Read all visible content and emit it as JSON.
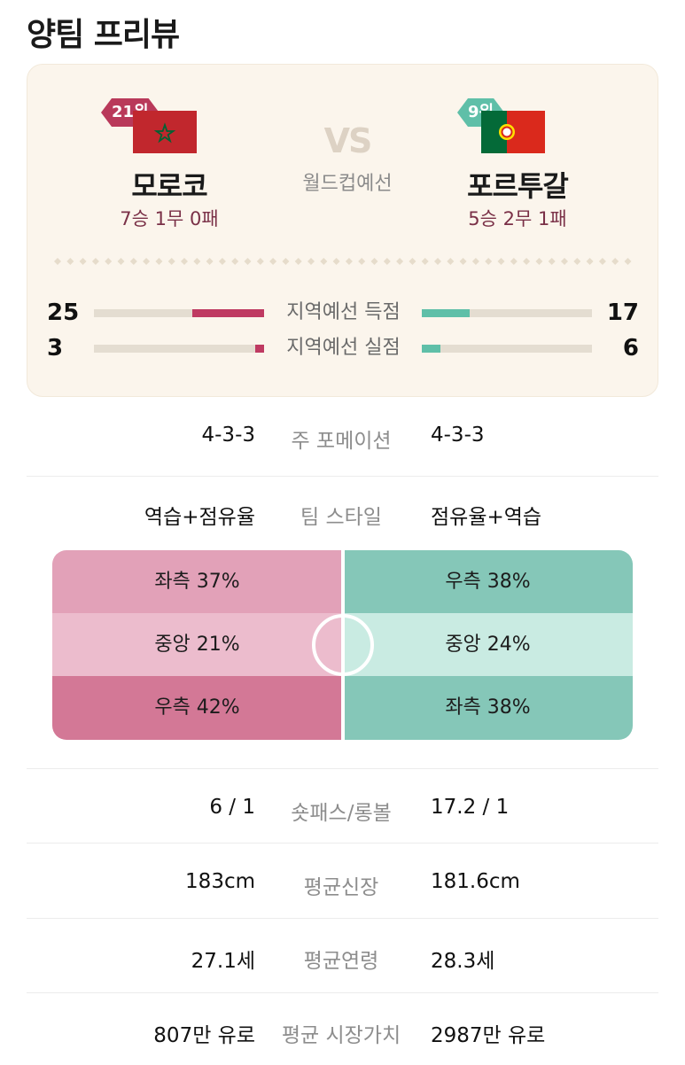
{
  "page_title": "양팀 프리뷰",
  "match": {
    "vs": "VS",
    "competition": "월드컵예선",
    "left_team": {
      "rank": "21위",
      "name": "모로코",
      "record": "7승 1무 0패",
      "flag": "morocco-flag-icon"
    },
    "right_team": {
      "rank": "9위",
      "name": "포르투갈",
      "record": "5승 2무 1패",
      "flag": "portugal-flag-icon"
    }
  },
  "stats": [
    {
      "label": "지역예선 득점",
      "left": "25",
      "right": "17",
      "left_ratio": 0.42,
      "right_ratio": 0.28
    },
    {
      "label": "지역예선 실점",
      "left": "3",
      "right": "6",
      "left_ratio": 0.05,
      "right_ratio": 0.11
    }
  ],
  "info_rows": [
    {
      "label": "주 포메이션",
      "left": "4-3-3",
      "right": "4-3-3"
    },
    {
      "label": "팀 스타일",
      "left": "역습+점유율",
      "right": "점유율+역습"
    }
  ],
  "attack_zones": {
    "left": [
      "좌측 37%",
      "중앙 21%",
      "우측 42%"
    ],
    "right": [
      "우측 38%",
      "중앙 24%",
      "좌측 38%"
    ]
  },
  "detail_rows": [
    {
      "label": "숏패스/롱볼",
      "left": "6 / 1",
      "right": "17.2 / 1"
    },
    {
      "label": "평균신장",
      "left": "183cm",
      "right": "181.6cm"
    },
    {
      "label": "평균연령",
      "left": "27.1세",
      "right": "28.3세"
    },
    {
      "label": "평균 시장가치",
      "left": "807만 유로",
      "right": "2987만 유로"
    }
  ],
  "colors": {
    "morocco": "#bf3a62",
    "portugal": "#5fbfa8",
    "zone_left": [
      "#e2a1b8",
      "#ecbccd",
      "#d37896"
    ],
    "zone_right": [
      "#85c7b8",
      "#c9ebe2",
      "#85c7b8"
    ]
  }
}
